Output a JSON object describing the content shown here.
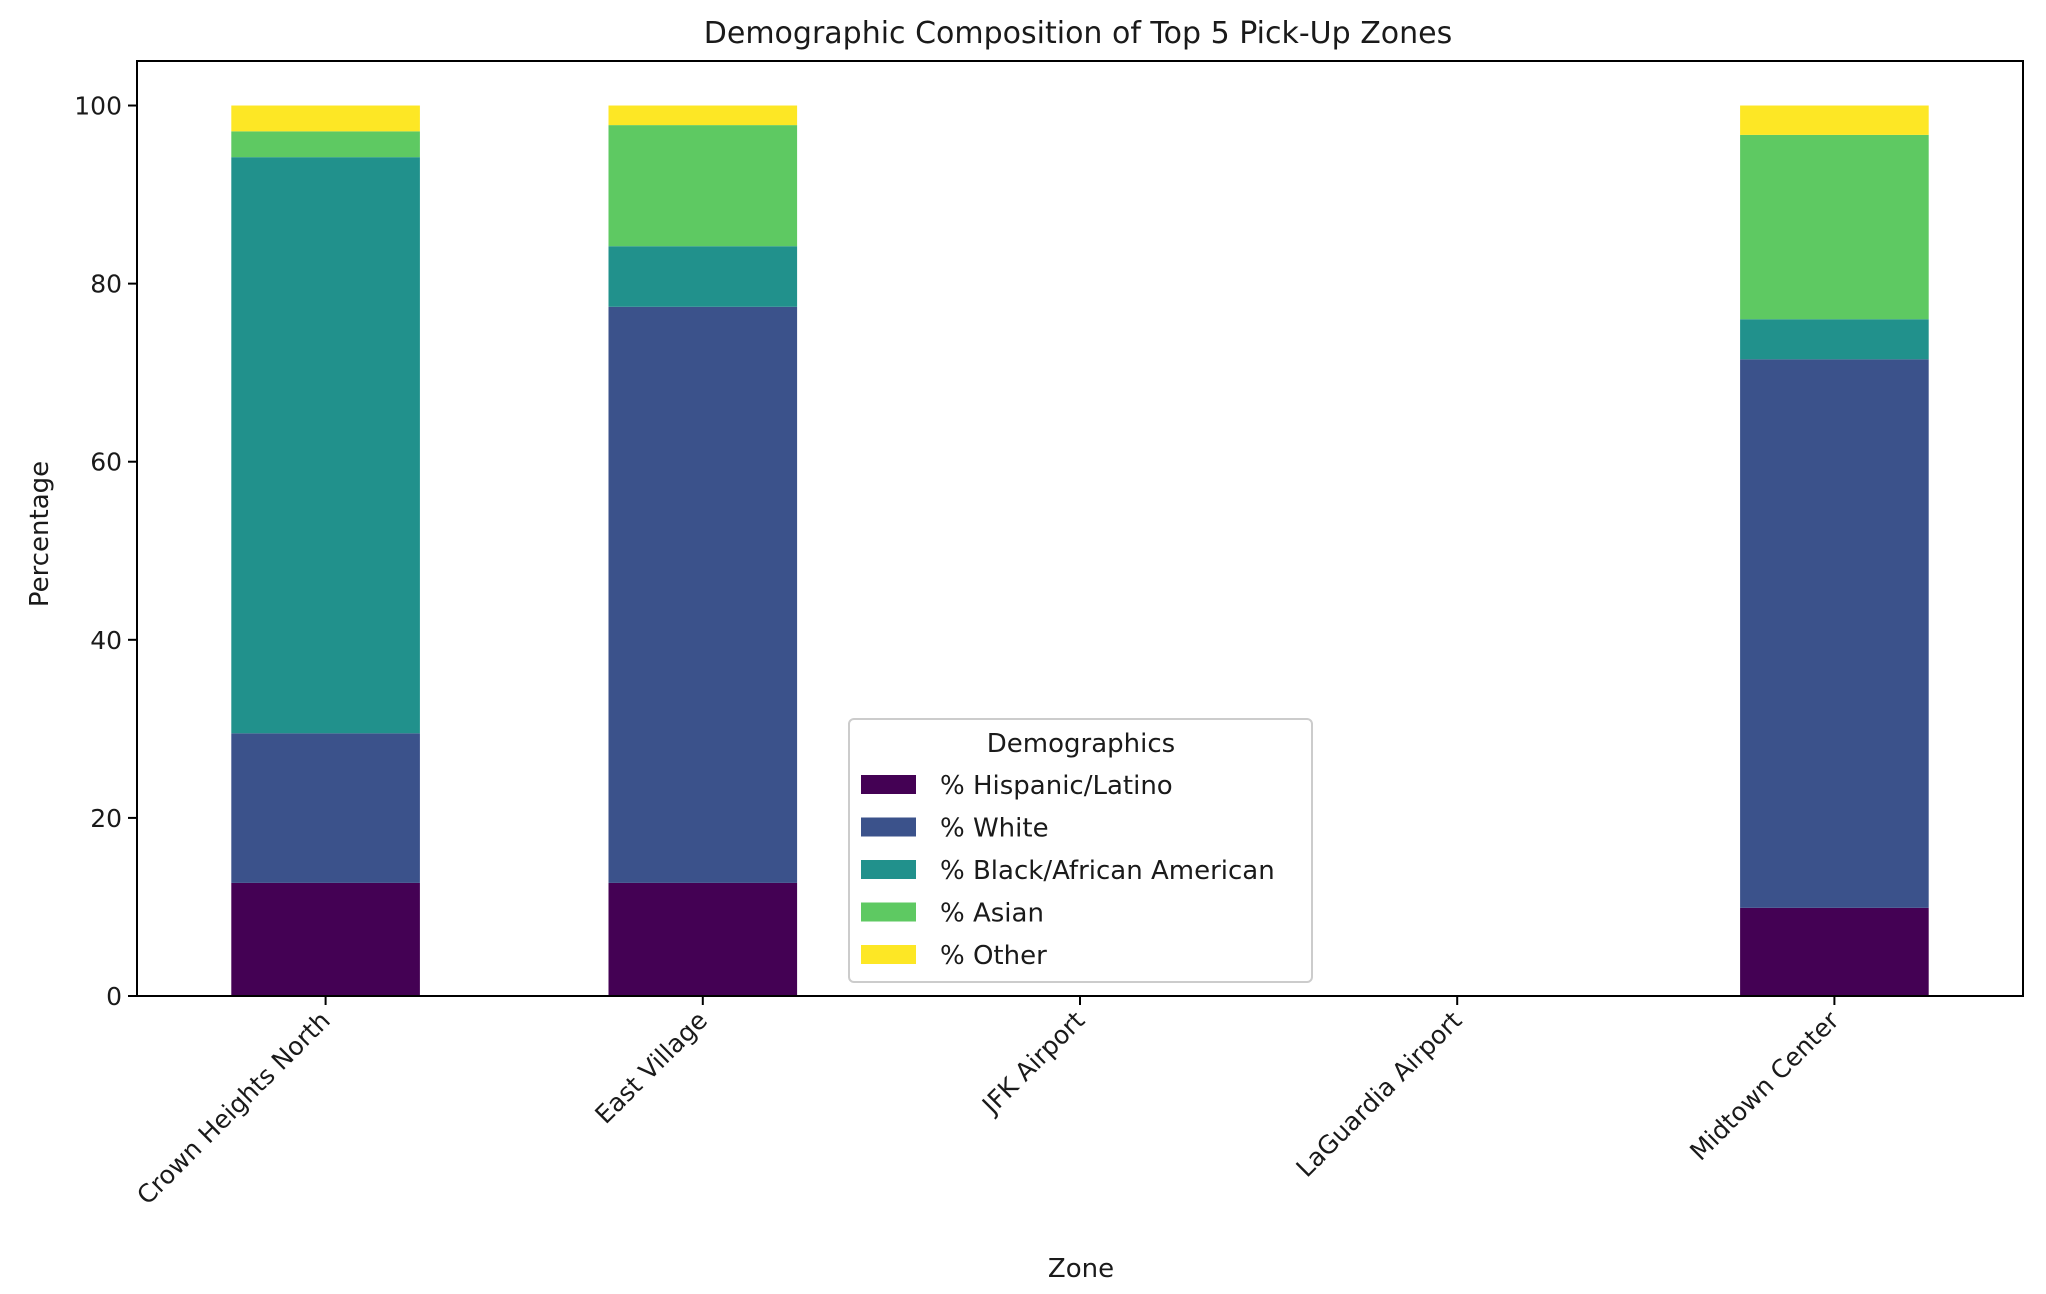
{
  "chart_data": {
    "type": "bar",
    "stacked": true,
    "title": "Demographic Composition of Top 5 Pick-Up Zones",
    "xlabel": "Zone",
    "ylabel": "Percentage",
    "ylim": [
      0,
      105
    ],
    "yticks": [
      "0",
      "20",
      "40",
      "60",
      "80",
      "100"
    ],
    "grid": false,
    "categories": [
      "Crown Heights North",
      "East Village",
      "JFK Airport",
      "LaGuardia Airport",
      "Midtown Center"
    ],
    "series": [
      {
        "name": "% Hispanic/Latino",
        "color": "#440154",
        "values": [
          12.7,
          12.7,
          0,
          0,
          9.9
        ]
      },
      {
        "name": "% White",
        "color": "#3b528b",
        "values": [
          16.8,
          64.7,
          0,
          0,
          61.6
        ]
      },
      {
        "name": "% Black/African American",
        "color": "#21918c",
        "values": [
          64.7,
          6.8,
          0,
          0,
          4.5
        ]
      },
      {
        "name": "% Asian",
        "color": "#5ec962",
        "values": [
          2.9,
          13.6,
          0,
          0,
          20.7
        ]
      },
      {
        "name": "% Other",
        "color": "#fde725",
        "values": [
          2.9,
          2.2,
          0,
          0,
          3.3
        ]
      }
    ],
    "legend": {
      "title": "Demographics",
      "placement": "lower-center"
    }
  }
}
